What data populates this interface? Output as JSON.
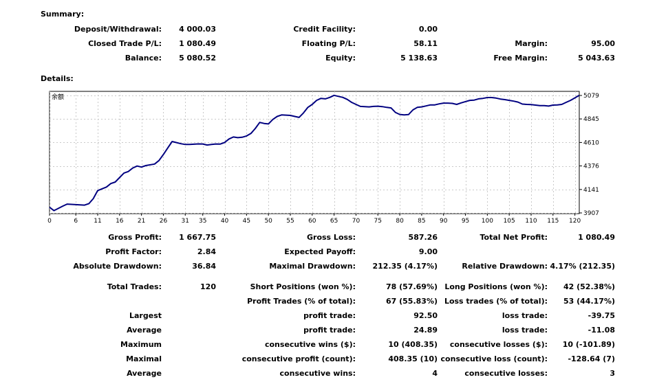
{
  "summary": {
    "heading": "Summary:",
    "rows": [
      [
        {
          "label": "Deposit/Withdrawal:",
          "value": "4 000.03"
        },
        {
          "label": "Credit Facility:",
          "value": "0.00"
        },
        {
          "label": "",
          "value": ""
        }
      ],
      [
        {
          "label": "Closed Trade P/L:",
          "value": "1 080.49"
        },
        {
          "label": "Floating P/L:",
          "value": "58.11"
        },
        {
          "label": "Margin:",
          "value": "95.00"
        }
      ],
      [
        {
          "label": "Balance:",
          "value": "5 080.52"
        },
        {
          "label": "Equity:",
          "value": "5 138.63"
        },
        {
          "label": "Free Margin:",
          "value": "5 043.63"
        }
      ]
    ]
  },
  "details": {
    "heading": "Details:"
  },
  "stats": {
    "rows": [
      [
        {
          "label": "Gross Profit:",
          "value": "1 667.75"
        },
        {
          "label": "Gross Loss:",
          "value": "587.26"
        },
        {
          "label": "Total Net Profit:",
          "value": "1 080.49"
        }
      ],
      [
        {
          "label": "Profit Factor:",
          "value": "2.84"
        },
        {
          "label": "Expected Payoff:",
          "value": "9.00"
        },
        {
          "label": "",
          "value": ""
        }
      ],
      [
        {
          "label": "Absolute Drawdown:",
          "value": "36.84"
        },
        {
          "label": "Maximal Drawdown:",
          "value": "212.35 (4.17%)"
        },
        {
          "label": "Relative Drawdown:",
          "value": "4.17% (212.35)"
        }
      ],
      [
        {
          "label": "Total Trades:",
          "value": "120"
        },
        {
          "label": "Short Positions (won %):",
          "value": "78 (57.69%)"
        },
        {
          "label": "Long Positions (won %):",
          "value": "42 (52.38%)"
        }
      ],
      [
        {
          "label": "",
          "value": ""
        },
        {
          "label": "Profit Trades (% of total):",
          "value": "67 (55.83%)"
        },
        {
          "label": "Loss trades (% of total):",
          "value": "53 (44.17%)"
        }
      ],
      [
        {
          "label": "Largest",
          "value": ""
        },
        {
          "label": "profit trade:",
          "value": "92.50"
        },
        {
          "label": "loss trade:",
          "value": "-39.75"
        }
      ],
      [
        {
          "label": "Average",
          "value": ""
        },
        {
          "label": "profit trade:",
          "value": "24.89"
        },
        {
          "label": "loss trade:",
          "value": "-11.08"
        }
      ],
      [
        {
          "label": "Maximum",
          "value": ""
        },
        {
          "label": "consecutive wins ($):",
          "value": "10 (408.35)"
        },
        {
          "label": "consecutive losses ($):",
          "value": "10 (-101.89)"
        }
      ],
      [
        {
          "label": "Maximal",
          "value": ""
        },
        {
          "label": "consecutive profit (count):",
          "value": "408.35 (10)"
        },
        {
          "label": "consecutive loss (count):",
          "value": "-128.64 (7)"
        }
      ],
      [
        {
          "label": "Average",
          "value": ""
        },
        {
          "label": "consecutive wins:",
          "value": "4"
        },
        {
          "label": "consecutive losses:",
          "value": "3"
        }
      ]
    ]
  },
  "chart_data": {
    "type": "line",
    "legend_tag": "余额",
    "xlim": [
      0,
      121
    ],
    "ylim": [
      3900,
      5120
    ],
    "x_ticks": [
      0,
      6,
      11,
      16,
      21,
      26,
      31,
      35,
      40,
      45,
      50,
      55,
      60,
      65,
      70,
      75,
      80,
      85,
      90,
      95,
      100,
      105,
      110,
      115,
      120
    ],
    "y_ticks": [
      3907,
      4141,
      4376,
      4610,
      4845,
      5079
    ],
    "grid": true,
    "line_color": "#000080",
    "series": [
      {
        "x": [
          0,
          1,
          3,
          4,
          6,
          8,
          9,
          10,
          11,
          13,
          14,
          15,
          16,
          17,
          18,
          19,
          20,
          21,
          22,
          24,
          25,
          26,
          27,
          28,
          30,
          31,
          32,
          33,
          34,
          35,
          36,
          37,
          38,
          39,
          40,
          41,
          42,
          43,
          44,
          45,
          46,
          47,
          48,
          49,
          50,
          51,
          52,
          53,
          55,
          56,
          57,
          58,
          59,
          60,
          61,
          62,
          63,
          64,
          65,
          66,
          67,
          68,
          69,
          70,
          71,
          72,
          73,
          74,
          75,
          76,
          77,
          78,
          79,
          80,
          81,
          82,
          83,
          84,
          85,
          86,
          87,
          88,
          89,
          90,
          91,
          92,
          93,
          94,
          95,
          96,
          97,
          98,
          99,
          100,
          101,
          102,
          103,
          104,
          105,
          106,
          107,
          108,
          109,
          110,
          111,
          112,
          113,
          114,
          115,
          116,
          117,
          118,
          119,
          120,
          121
        ],
        "y": [
          3964,
          3930,
          3975,
          3995,
          3990,
          3985,
          4000,
          4050,
          4130,
          4165,
          4200,
          4215,
          4260,
          4305,
          4320,
          4355,
          4375,
          4365,
          4380,
          4395,
          4430,
          4490,
          4555,
          4620,
          4598,
          4590,
          4590,
          4593,
          4596,
          4595,
          4585,
          4590,
          4595,
          4594,
          4610,
          4645,
          4665,
          4658,
          4662,
          4675,
          4700,
          4750,
          4810,
          4800,
          4795,
          4840,
          4870,
          4885,
          4880,
          4870,
          4860,
          4905,
          4960,
          4990,
          5030,
          5050,
          5045,
          5060,
          5080,
          5070,
          5060,
          5040,
          5010,
          4990,
          4970,
          4968,
          4965,
          4970,
          4972,
          4968,
          4960,
          4955,
          4910,
          4890,
          4885,
          4888,
          4935,
          4960,
          4965,
          4975,
          4985,
          4985,
          4995,
          5003,
          5003,
          5000,
          4990,
          5005,
          5018,
          5030,
          5033,
          5045,
          5050,
          5058,
          5058,
          5053,
          5043,
          5038,
          5030,
          5023,
          5013,
          4993,
          4990,
          4988,
          4983,
          4978,
          4978,
          4973,
          4983,
          4985,
          4990,
          5010,
          5030,
          5055,
          5080
        ]
      }
    ]
  }
}
